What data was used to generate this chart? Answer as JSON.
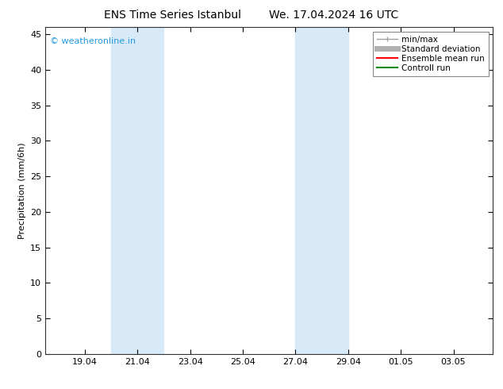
{
  "title_left": "ENS Time Series Istanbul",
  "title_right": "We. 17.04.2024 16 UTC",
  "ylabel": "Precipitation (mm/6h)",
  "ylim": [
    0,
    46
  ],
  "yticks": [
    0,
    5,
    10,
    15,
    20,
    25,
    30,
    35,
    40,
    45
  ],
  "background_color": "#ffffff",
  "plot_bg_color": "#ffffff",
  "shade_bands": [
    {
      "xmin": 20.0,
      "xmax": 21.0,
      "color": "#d8eaf8"
    },
    {
      "xmin": 21.0,
      "xmax": 22.0,
      "color": "#d8eaf8"
    },
    {
      "xmin": 27.0,
      "xmax": 28.0,
      "color": "#d8eaf8"
    },
    {
      "xmin": 28.0,
      "xmax": 29.0,
      "color": "#d8eaf8"
    }
  ],
  "xtick_positions": [
    19.0,
    21.0,
    23.0,
    25.0,
    27.0,
    29.0,
    31.0,
    33.0
  ],
  "xtick_labels": [
    "19.04",
    "21.04",
    "23.04",
    "25.04",
    "27.04",
    "29.04",
    "01.05",
    "03.05"
  ],
  "xmin": 17.5,
  "xmax": 34.5,
  "copyright_text": "© weatheronline.in",
  "copyright_color": "#2299dd",
  "legend_items": [
    {
      "label": "min/max",
      "color": "#a0a0a0",
      "lw": 1.0,
      "style": "solid",
      "type": "minmax"
    },
    {
      "label": "Standard deviation",
      "color": "#b0b0b0",
      "lw": 5,
      "style": "solid",
      "type": "line"
    },
    {
      "label": "Ensemble mean run",
      "color": "#ff0000",
      "lw": 1.5,
      "style": "solid",
      "type": "line"
    },
    {
      "label": "Controll run",
      "color": "#008800",
      "lw": 1.5,
      "style": "solid",
      "type": "line"
    }
  ],
  "title_fontsize": 10,
  "ylabel_fontsize": 8,
  "tick_fontsize": 8,
  "legend_fontsize": 7.5,
  "copyright_fontsize": 8
}
